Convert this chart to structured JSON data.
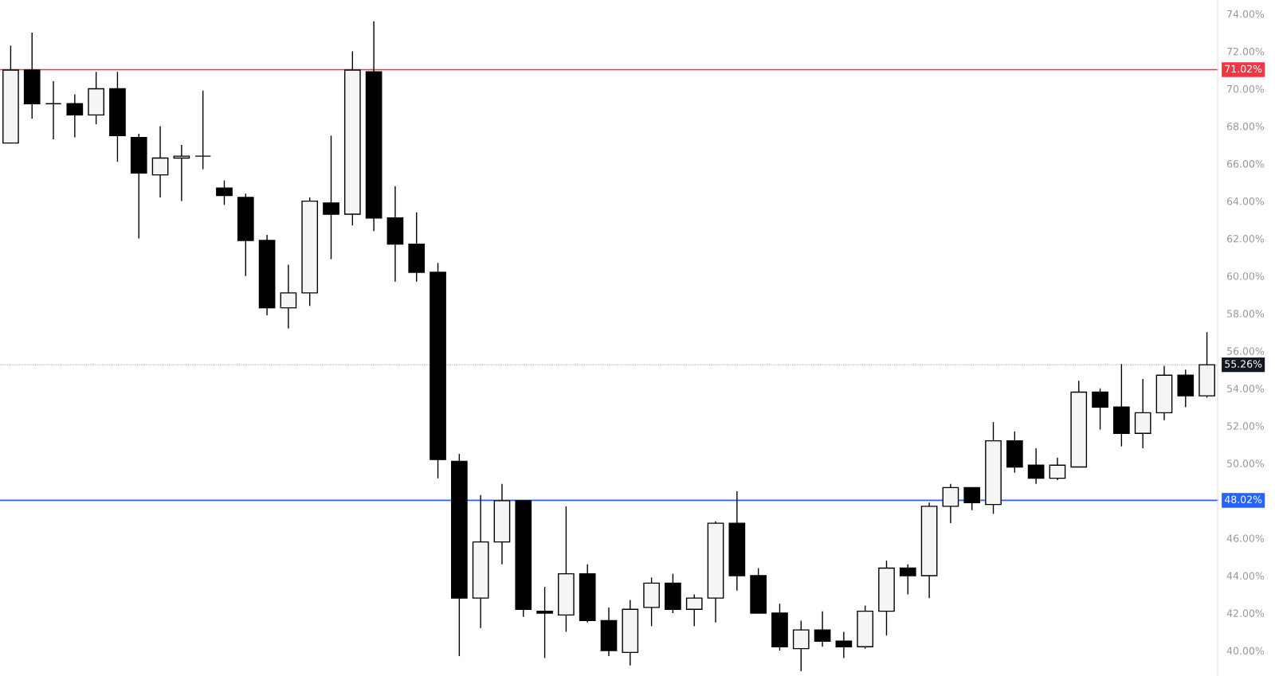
{
  "chart_data": {
    "type": "candlestick",
    "categories": [
      null,
      null,
      null,
      null,
      null,
      null,
      null,
      null,
      null,
      null,
      null,
      null,
      null,
      null,
      null,
      null,
      null,
      null,
      null,
      null,
      null,
      null,
      null,
      null,
      null,
      null,
      null,
      null,
      null,
      null,
      null,
      null,
      null,
      null,
      null,
      null,
      null,
      null,
      null,
      null,
      null,
      null,
      null,
      null,
      null,
      null,
      null,
      null,
      null,
      null,
      null,
      null,
      null,
      null,
      null,
      null,
      null
    ],
    "ohlc": [
      [
        67.1,
        72.3,
        67.1,
        71.0
      ],
      [
        71.0,
        73.0,
        68.4,
        69.2
      ],
      [
        69.2,
        70.4,
        67.3,
        69.2
      ],
      [
        69.2,
        69.7,
        67.4,
        68.6
      ],
      [
        68.6,
        70.9,
        68.1,
        70.0
      ],
      [
        70.0,
        70.9,
        66.1,
        67.5
      ],
      [
        67.4,
        67.6,
        62.0,
        65.5
      ],
      [
        65.4,
        68.0,
        64.2,
        66.3
      ],
      [
        66.3,
        67.0,
        64.0,
        66.4
      ],
      [
        66.4,
        69.9,
        65.7,
        66.4
      ],
      [
        64.7,
        65.1,
        63.8,
        64.3
      ],
      [
        64.2,
        64.4,
        60.0,
        61.9
      ],
      [
        61.9,
        62.2,
        57.9,
        58.3
      ],
      [
        58.3,
        60.6,
        57.2,
        59.1
      ],
      [
        59.1,
        64.2,
        58.4,
        64.0
      ],
      [
        63.9,
        67.5,
        60.9,
        63.3
      ],
      [
        63.3,
        72.0,
        62.7,
        71.0
      ],
      [
        70.9,
        73.6,
        62.4,
        63.1
      ],
      [
        63.1,
        64.8,
        59.7,
        61.7
      ],
      [
        61.7,
        63.4,
        59.7,
        60.2
      ],
      [
        60.2,
        60.7,
        49.2,
        50.2
      ],
      [
        50.1,
        50.5,
        39.7,
        42.8
      ],
      [
        42.8,
        48.3,
        41.2,
        45.8
      ],
      [
        45.8,
        48.9,
        44.6,
        48.0
      ],
      [
        48.0,
        48.0,
        41.8,
        42.2
      ],
      [
        42.1,
        43.4,
        39.6,
        42.0
      ],
      [
        41.9,
        47.7,
        41.0,
        44.1
      ],
      [
        44.1,
        44.6,
        41.5,
        41.6
      ],
      [
        41.6,
        42.3,
        39.7,
        40.0
      ],
      [
        39.9,
        42.7,
        39.2,
        42.2
      ],
      [
        42.3,
        43.9,
        41.3,
        43.6
      ],
      [
        43.6,
        44.1,
        42.0,
        42.2
      ],
      [
        42.2,
        43.0,
        41.3,
        42.8
      ],
      [
        42.8,
        46.9,
        41.5,
        46.8
      ],
      [
        46.8,
        48.5,
        43.2,
        44.0
      ],
      [
        44.0,
        44.4,
        42.0,
        42.0
      ],
      [
        42.0,
        42.5,
        40.0,
        40.2
      ],
      [
        40.1,
        41.6,
        38.9,
        41.1
      ],
      [
        41.1,
        42.1,
        40.2,
        40.5
      ],
      [
        40.5,
        41.0,
        39.6,
        40.2
      ],
      [
        40.2,
        42.4,
        40.1,
        42.1
      ],
      [
        42.1,
        44.8,
        40.8,
        44.4
      ],
      [
        44.4,
        44.6,
        43.0,
        44.0
      ],
      [
        44.0,
        47.9,
        42.8,
        47.7
      ],
      [
        47.7,
        48.9,
        46.8,
        48.7
      ],
      [
        48.7,
        48.7,
        47.5,
        47.9
      ],
      [
        47.8,
        52.2,
        47.3,
        51.2
      ],
      [
        51.2,
        51.7,
        49.5,
        49.8
      ],
      [
        49.9,
        50.8,
        48.9,
        49.2
      ],
      [
        49.2,
        50.3,
        49.1,
        49.9
      ],
      [
        49.8,
        54.4,
        49.8,
        53.8
      ],
      [
        53.8,
        54.0,
        51.8,
        53.0
      ],
      [
        53.0,
        55.3,
        50.9,
        51.6
      ],
      [
        51.6,
        54.5,
        50.8,
        52.7
      ],
      [
        52.7,
        55.2,
        52.3,
        54.7
      ],
      [
        54.7,
        55.0,
        53.0,
        53.6
      ],
      [
        53.6,
        57.0,
        53.5,
        55.26
      ]
    ],
    "ylim": [
      38.64,
      74.74
    ],
    "yticks": [
      {
        "value": 40,
        "label": "40.00%"
      },
      {
        "value": 42,
        "label": "42.00%"
      },
      {
        "value": 44,
        "label": "44.00%"
      },
      {
        "value": 46,
        "label": "46.00%"
      },
      {
        "value": 50,
        "label": "50.00%"
      },
      {
        "value": 52,
        "label": "52.00%"
      },
      {
        "value": 54,
        "label": "54.00%"
      },
      {
        "value": 56,
        "label": "56.00%"
      },
      {
        "value": 58,
        "label": "58.00%"
      },
      {
        "value": 60,
        "label": "60.00%"
      },
      {
        "value": 62,
        "label": "62.00%"
      },
      {
        "value": 64,
        "label": "64.00%"
      },
      {
        "value": 66,
        "label": "66.00%"
      },
      {
        "value": 68,
        "label": "68.00%"
      },
      {
        "value": 70,
        "label": "70.00%"
      },
      {
        "value": 72,
        "label": "72.00%"
      },
      {
        "value": 74,
        "label": "74.00%"
      }
    ],
    "ref_lines": [
      {
        "axis": "y",
        "value": 71.02,
        "label": "71.02%",
        "color": "#f23645",
        "line_style": "solid"
      },
      {
        "axis": "y",
        "value": 48.02,
        "label": "48.02%",
        "color": "#2962ff",
        "line_style": "solid"
      },
      {
        "axis": "y",
        "value": 55.26,
        "label": "55.26%",
        "color": "#131722",
        "line_style": "dotted"
      }
    ],
    "tick_labels": "y",
    "grid": false
  }
}
